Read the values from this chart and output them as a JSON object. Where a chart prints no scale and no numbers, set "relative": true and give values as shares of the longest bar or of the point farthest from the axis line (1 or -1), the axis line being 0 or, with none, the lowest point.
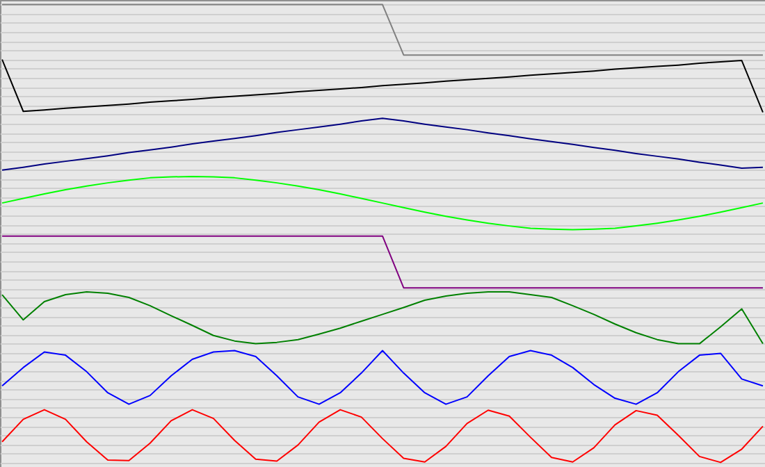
{
  "chart_data": {
    "type": "line",
    "relative": true,
    "grid": true,
    "categories": [
      null,
      null,
      null,
      null,
      null,
      null,
      null,
      null,
      null,
      null,
      null,
      null,
      null,
      null,
      null,
      null,
      null,
      null,
      null,
      null,
      null,
      null,
      null,
      null,
      null,
      null,
      null,
      null,
      null,
      null,
      null,
      null,
      null,
      null,
      null,
      null,
      null
    ],
    "series": [
      {
        "color": "#808080",
        "values": [
          1.0,
          1.0,
          1.0,
          1.0,
          1.0,
          1.0,
          1.0,
          1.0,
          1.0,
          1.0,
          1.0,
          1.0,
          1.0,
          1.0,
          1.0,
          1.0,
          1.0,
          1.0,
          1.0,
          0.89,
          0.89,
          0.89,
          0.89,
          0.89,
          0.89,
          0.89,
          0.89,
          0.89,
          0.89,
          0.89,
          0.89,
          0.89,
          0.89,
          0.89,
          0.89,
          0.89,
          0.89
        ]
      },
      {
        "color": "#000000",
        "values": [
          0.88,
          0.767,
          0.77,
          0.774,
          0.777,
          0.78,
          0.783,
          0.787,
          0.79,
          0.793,
          0.797,
          0.8,
          0.803,
          0.806,
          0.81,
          0.813,
          0.816,
          0.819,
          0.823,
          0.826,
          0.829,
          0.833,
          0.836,
          0.839,
          0.842,
          0.846,
          0.849,
          0.852,
          0.855,
          0.859,
          0.862,
          0.865,
          0.868,
          0.872,
          0.875,
          0.878,
          0.765
        ]
      },
      {
        "color": "#000080",
        "values": [
          0.639,
          0.645,
          0.652,
          0.658,
          0.664,
          0.67,
          0.677,
          0.683,
          0.689,
          0.696,
          0.702,
          0.708,
          0.714,
          0.721,
          0.727,
          0.733,
          0.739,
          0.746,
          0.752,
          0.746,
          0.739,
          0.733,
          0.727,
          0.72,
          0.714,
          0.707,
          0.701,
          0.695,
          0.688,
          0.682,
          0.675,
          0.669,
          0.663,
          0.656,
          0.65,
          0.643,
          0.645
        ]
      },
      {
        "color": "#00ff00",
        "values": [
          0.567,
          0.577,
          0.587,
          0.596,
          0.604,
          0.611,
          0.617,
          0.622,
          0.624,
          0.625,
          0.624,
          0.622,
          0.617,
          0.611,
          0.604,
          0.596,
          0.587,
          0.577,
          0.567,
          0.557,
          0.547,
          0.538,
          0.53,
          0.523,
          0.517,
          0.512,
          0.51,
          0.509,
          0.51,
          0.512,
          0.517,
          0.523,
          0.53,
          0.538,
          0.547,
          0.557,
          0.567
        ]
      },
      {
        "color": "#800080",
        "values": [
          0.495,
          0.495,
          0.495,
          0.495,
          0.495,
          0.495,
          0.495,
          0.495,
          0.495,
          0.495,
          0.495,
          0.495,
          0.495,
          0.495,
          0.495,
          0.495,
          0.495,
          0.495,
          0.495,
          0.382,
          0.382,
          0.382,
          0.382,
          0.382,
          0.382,
          0.382,
          0.382,
          0.382,
          0.382,
          0.382,
          0.382,
          0.382,
          0.382,
          0.382,
          0.382,
          0.382,
          0.382
        ]
      },
      {
        "color": "#008000",
        "values": [
          0.367,
          0.312,
          0.352,
          0.367,
          0.373,
          0.37,
          0.361,
          0.343,
          0.321,
          0.3,
          0.278,
          0.266,
          0.26,
          0.263,
          0.269,
          0.281,
          0.294,
          0.309,
          0.324,
          0.339,
          0.355,
          0.364,
          0.37,
          0.373,
          0.373,
          0.367,
          0.361,
          0.343,
          0.324,
          0.303,
          0.284,
          0.269,
          0.26,
          0.26,
          0.297,
          0.336,
          0.26
        ]
      },
      {
        "color": "#0000ff",
        "values": [
          0.168,
          0.208,
          0.242,
          0.235,
          0.199,
          0.153,
          0.128,
          0.147,
          0.19,
          0.226,
          0.242,
          0.245,
          0.232,
          0.19,
          0.144,
          0.128,
          0.153,
          0.196,
          0.245,
          0.196,
          0.153,
          0.128,
          0.144,
          0.19,
          0.232,
          0.245,
          0.235,
          0.208,
          0.171,
          0.141,
          0.128,
          0.153,
          0.199,
          0.235,
          0.239,
          0.183,
          0.168
        ]
      },
      {
        "color": "#ff0000",
        "values": [
          0.046,
          0.095,
          0.116,
          0.095,
          0.046,
          0.006,
          0.005,
          0.043,
          0.092,
          0.116,
          0.097,
          0.049,
          0.008,
          0.004,
          0.039,
          0.089,
          0.116,
          0.1,
          0.053,
          0.01,
          0.002,
          0.036,
          0.086,
          0.115,
          0.102,
          0.056,
          0.012,
          0.002,
          0.033,
          0.083,
          0.114,
          0.104,
          0.06,
          0.014,
          0.001,
          0.03,
          0.08
        ]
      }
    ]
  }
}
